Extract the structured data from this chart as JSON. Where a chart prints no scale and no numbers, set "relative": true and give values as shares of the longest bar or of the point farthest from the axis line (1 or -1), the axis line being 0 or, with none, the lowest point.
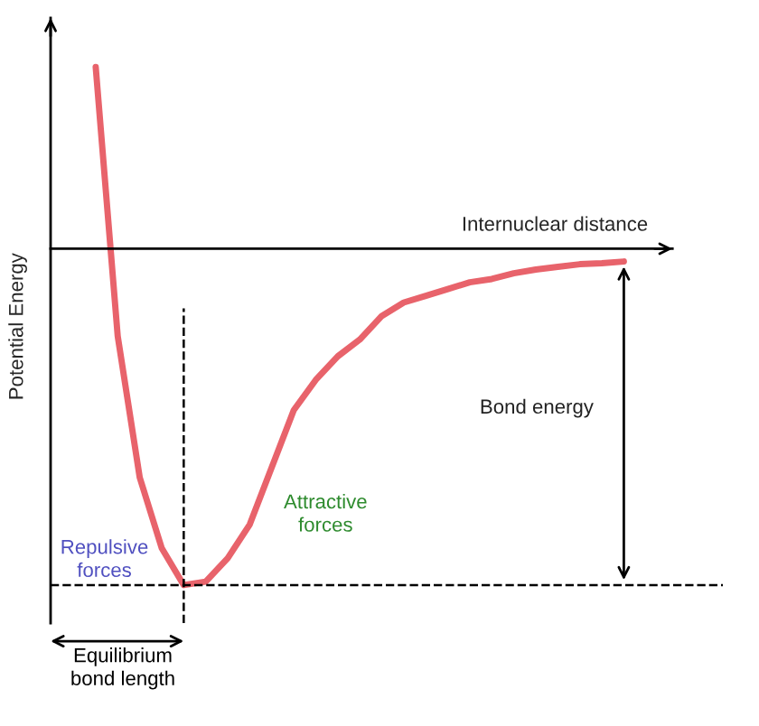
{
  "chart_data": {
    "type": "line",
    "relative": true,
    "xlabel": "Internuclear distance",
    "ylabel": "Potential Energy",
    "categories": [
      null,
      null,
      null,
      null,
      null,
      null,
      null,
      null,
      null,
      null,
      null,
      null,
      null,
      null,
      null,
      null,
      null,
      null,
      null,
      null,
      null,
      null,
      null,
      null,
      null
    ],
    "series": [
      {
        "color": "#e8636b",
        "values": [
          0.54,
          -0.26,
          -0.68,
          -0.89,
          -1.0,
          -0.99,
          -0.92,
          -0.82,
          -0.65,
          -0.48,
          -0.39,
          -0.32,
          -0.27,
          -0.2,
          -0.16,
          -0.14,
          -0.12,
          -0.1,
          -0.09,
          -0.073,
          -0.062,
          -0.054,
          -0.046,
          -0.043,
          -0.038
        ]
      }
    ],
    "ref_lines": [
      {
        "axis": "y",
        "value": -1,
        "line_style": "dashed",
        "color": "#000000"
      }
    ],
    "annotations": [
      "Repulsive\nforces",
      "Attractive\nforces",
      "Bond energy",
      "Equilibrium\nbond length"
    ],
    "marker": "none",
    "line_style": "solid",
    "legend": false
  }
}
